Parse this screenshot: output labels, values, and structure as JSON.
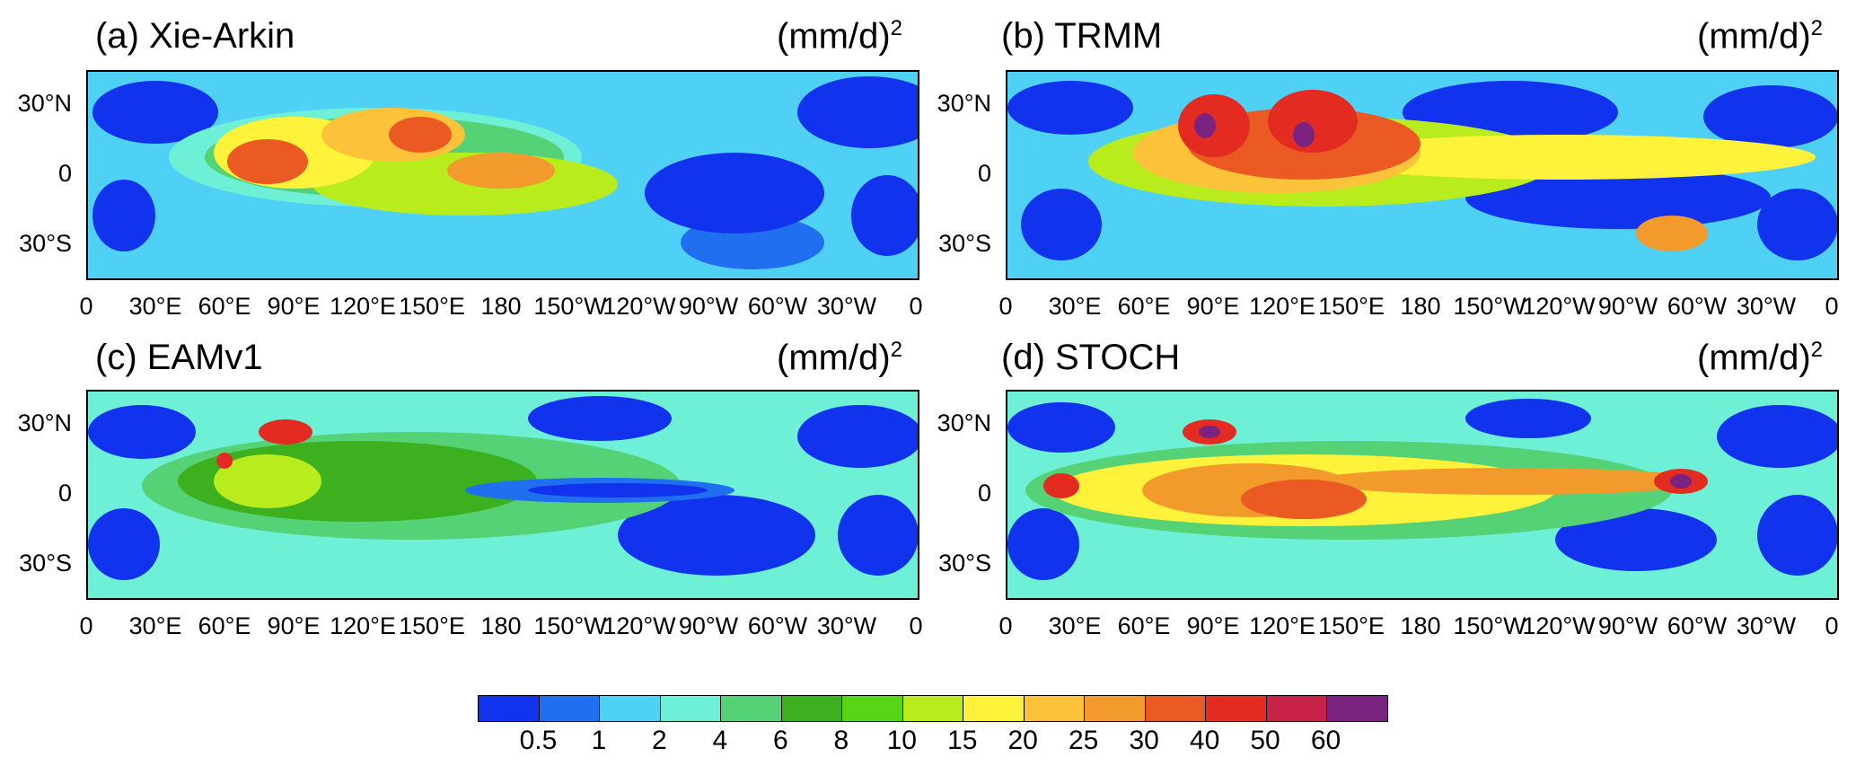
{
  "units_main": "(mm/d)",
  "units_sup": "2",
  "panels": [
    {
      "title": "(a) Xie-Arkin"
    },
    {
      "title": "(b) TRMM"
    },
    {
      "title": "(c) EAMv1"
    },
    {
      "title": "(d) STOCH"
    }
  ],
  "lat_labels": [
    "30°N",
    "0",
    "30°S"
  ],
  "lon_labels": [
    "0",
    "30°E",
    "60°E",
    "90°E",
    "120°E",
    "150°E",
    "180",
    "150°W",
    "120°W",
    "90°W",
    "60°W",
    "30°W",
    "0"
  ],
  "colorbar": {
    "colors": [
      "#1133ee",
      "#1f6ff0",
      "#4fd0f5",
      "#6ef0d6",
      "#55d276",
      "#3cb01e",
      "#57d617",
      "#b8ec1c",
      "#fff23a",
      "#fcc23a",
      "#f29a2c",
      "#ec5a23",
      "#e42b22",
      "#c82248",
      "#7a2480"
    ],
    "labels": [
      "0.5",
      "1",
      "2",
      "4",
      "6",
      "8",
      "10",
      "15",
      "20",
      "25",
      "30",
      "40",
      "50",
      "60"
    ]
  },
  "blob_palette": {
    "ocean_dry": "#1133ee",
    "low": "#4fd0f5",
    "midlow": "#6ef0d6",
    "mid": "#55d276",
    "midhigh": "#3cb01e",
    "high": "#b8ec1c",
    "higher": "#fff23a",
    "peak": "#f29a2c",
    "extreme": "#e42b22",
    "max": "#7a2480"
  }
}
